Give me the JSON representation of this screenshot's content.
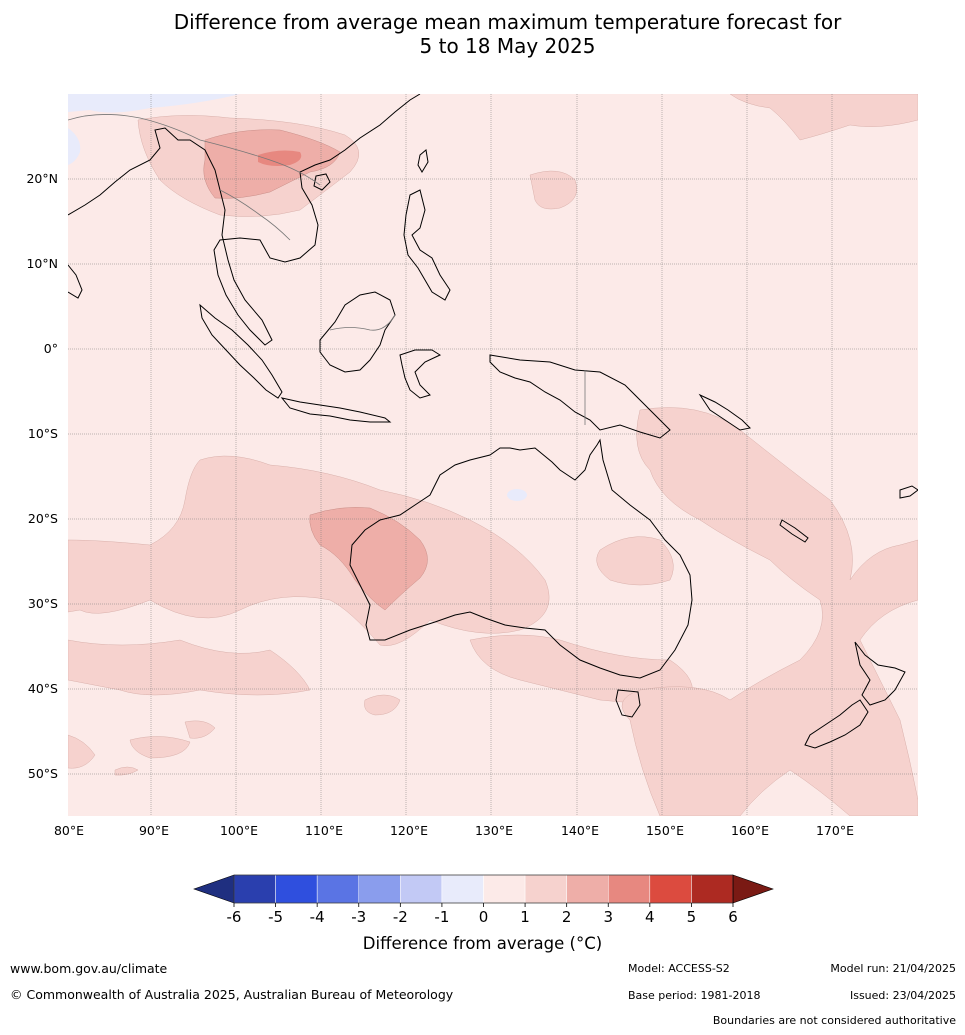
{
  "title_line1": "Difference from average mean maximum temperature forecast for",
  "title_line2": "5 to 18 May 2025",
  "lat_labels": [
    "20°N",
    "10°N",
    "0°",
    "10°S",
    "20°S",
    "30°S",
    "40°S",
    "50°S"
  ],
  "lon_labels": [
    "80°E",
    "90°E",
    "100°E",
    "110°E",
    "120°E",
    "130°E",
    "140°E",
    "150°E",
    "160°E",
    "170°E"
  ],
  "colorbar": {
    "ticks": [
      "-6",
      "-5",
      "-4",
      "-3",
      "-2",
      "-1",
      "0",
      "1",
      "2",
      "3",
      "4",
      "5",
      "6"
    ],
    "colors": [
      "#1f2f80",
      "#2a3fae",
      "#2f4fde",
      "#5a74e4",
      "#8a9ded",
      "#c2c9f5",
      "#e8ebfb",
      "#fceae8",
      "#f6d2ce",
      "#eeaea8",
      "#e78880",
      "#dc4b3f",
      "#ad2a22",
      "#7a1a14"
    ],
    "label": "Difference from average (°C)"
  },
  "footer": {
    "website": "www.bom.gov.au/climate",
    "copyright": "© Commonwealth of Australia 2025, Australian Bureau of Meteorology",
    "model": "Model: ACCESS-S2",
    "base_period": "Base period: 1981-2018",
    "model_run": "Model run: 21/04/2025",
    "issued": "Issued: 23/04/2025",
    "disclaimer": "Boundaries are not considered authoritative"
  }
}
